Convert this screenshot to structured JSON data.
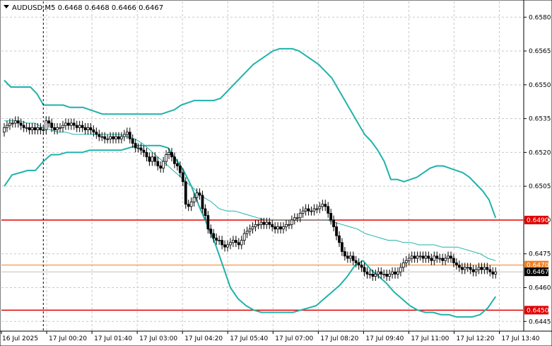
{
  "window": {
    "symbol_line": "AUDUSD,M5  0.6468 0.6468 0.6466 0.6467",
    "collapse_icon": "triangle-down-icon"
  },
  "colors": {
    "background": "#ffffff",
    "candle_bull": "#ffffff",
    "candle_bear": "#000000",
    "candle_outline": "#000000",
    "bollinger_band": "#20b2aa",
    "bollinger_mid": "#20b2aa",
    "grid": "#c8c8c8",
    "level_red": "#e00000",
    "level_orange": "#f08020",
    "bid_line": "#c0c0c0",
    "session_separator": "#000000"
  },
  "chart_data": {
    "type": "candlestick",
    "symbol": "AUDUSD",
    "timeframe": "M5",
    "ohlc": {
      "open": 0.6468,
      "high": 0.6468,
      "low": 0.6466,
      "close": 0.6467
    },
    "ylim": [
      0.6441,
      0.6587
    ],
    "y_ticks": [
      "0.6580",
      "0.6565",
      "0.6550",
      "0.6535",
      "0.6520",
      "0.6505",
      "0.6490",
      "0.6475",
      "0.6460",
      "0.6445"
    ],
    "x_ticks": [
      "16 Jul 2025",
      "17 Jul 00:20",
      "17 Jul 01:40",
      "17 Jul 03:00",
      "17 Jul 04:20",
      "17 Jul 05:40",
      "17 Jul 07:00",
      "17 Jul 08:20",
      "17 Jul 09:40",
      "17 Jul 11:00",
      "17 Jul 12:20",
      "17 Jul 13:40"
    ],
    "session_separator_index": 14,
    "horizontal_levels": [
      {
        "price": 0.649,
        "label": "0.6490",
        "color": "red"
      },
      {
        "price": 0.647,
        "label": "0.6470",
        "color": "orange"
      },
      {
        "price": 0.645,
        "label": "0.6450",
        "color": "red"
      }
    ],
    "current_price": {
      "price": 0.6467,
      "label": "0.6467"
    },
    "closes": [
      0.6531,
      0.6532,
      0.6533,
      0.6533,
      0.6534,
      0.6533,
      0.6532,
      0.6531,
      0.6531,
      0.653,
      0.6531,
      0.653,
      0.6531,
      0.653,
      0.653,
      0.6534,
      0.6533,
      0.6531,
      0.653,
      0.6531,
      0.6531,
      0.6532,
      0.6533,
      0.6532,
      0.6533,
      0.6532,
      0.6531,
      0.6532,
      0.6531,
      0.653,
      0.6531,
      0.653,
      0.6529,
      0.6528,
      0.6527,
      0.6527,
      0.6526,
      0.6526,
      0.6527,
      0.6526,
      0.6527,
      0.6526,
      0.6527,
      0.6528,
      0.6529,
      0.6526,
      0.6524,
      0.6522,
      0.6522,
      0.6521,
      0.652,
      0.6518,
      0.6516,
      0.6518,
      0.6516,
      0.6514,
      0.6513,
      0.6516,
      0.6519,
      0.652,
      0.6518,
      0.6515,
      0.6514,
      0.6511,
      0.6507,
      0.6497,
      0.6496,
      0.6498,
      0.65,
      0.6502,
      0.6501,
      0.6495,
      0.6492,
      0.6486,
      0.6484,
      0.6482,
      0.6481,
      0.6481,
      0.6479,
      0.6478,
      0.6479,
      0.648,
      0.6481,
      0.648,
      0.6479,
      0.6481,
      0.6484,
      0.6485,
      0.6486,
      0.6487,
      0.6488,
      0.6488,
      0.6489,
      0.6488,
      0.6489,
      0.6488,
      0.6487,
      0.6486,
      0.6487,
      0.6486,
      0.6487,
      0.6488,
      0.6488,
      0.649,
      0.6491,
      0.6491,
      0.6493,
      0.6494,
      0.6495,
      0.6494,
      0.6494,
      0.6495,
      0.6495,
      0.6496,
      0.6497,
      0.6496,
      0.6493,
      0.649,
      0.6487,
      0.6483,
      0.648,
      0.6476,
      0.6474,
      0.6473,
      0.6474,
      0.6472,
      0.6471,
      0.647,
      0.6469,
      0.6467,
      0.6466,
      0.6466,
      0.6465,
      0.6466,
      0.6467,
      0.6466,
      0.6466,
      0.6465,
      0.6466,
      0.6467,
      0.6466,
      0.6467,
      0.6469,
      0.6471,
      0.6472,
      0.6473,
      0.6474,
      0.6473,
      0.6474,
      0.6474,
      0.6473,
      0.6474,
      0.6473,
      0.6472,
      0.6474,
      0.6473,
      0.6473,
      0.6472,
      0.6473,
      0.6474,
      0.6473,
      0.6471,
      0.647,
      0.6469,
      0.6468,
      0.6469,
      0.6469,
      0.6468,
      0.6467,
      0.6468,
      0.6469,
      0.6468,
      0.6469,
      0.6468,
      0.6467,
      0.6466,
      0.6467
    ],
    "upper_band": [
      0.6552,
      0.6549,
      0.6549,
      0.6549,
      0.6549,
      0.6546,
      0.6541,
      0.6541,
      0.6541,
      0.6541,
      0.654,
      0.654,
      0.654,
      0.6539,
      0.6538,
      0.6537,
      0.6537,
      0.6537,
      0.6537,
      0.6537,
      0.6537,
      0.6537,
      0.6537,
      0.6537,
      0.6537,
      0.6538,
      0.6539,
      0.6541,
      0.6542,
      0.6543,
      0.6543,
      0.6543,
      0.6543,
      0.6544,
      0.6547,
      0.655,
      0.6553,
      0.6556,
      0.6559,
      0.6561,
      0.6563,
      0.6565,
      0.6566,
      0.6566,
      0.6566,
      0.6565,
      0.6563,
      0.6561,
      0.6559,
      0.6556,
      0.6553,
      0.6548,
      0.6543,
      0.6538,
      0.6533,
      0.6528,
      0.6525,
      0.6521,
      0.6516,
      0.6508,
      0.6508,
      0.6507,
      0.6508,
      0.6509,
      0.6511,
      0.6513,
      0.6514,
      0.6514,
      0.6513,
      0.6512,
      0.6511,
      0.6509,
      0.6506,
      0.6503,
      0.6499,
      0.6491
    ],
    "mid_band": [
      0.6534,
      0.6534,
      0.6534,
      0.6533,
      0.6533,
      0.6531,
      0.653,
      0.6529,
      0.6529,
      0.6528,
      0.6528,
      0.6528,
      0.6528,
      0.6528,
      0.6528,
      0.6528,
      0.6527,
      0.6526,
      0.6524,
      0.6521,
      0.6518,
      0.6515,
      0.6512,
      0.6509,
      0.6506,
      0.6503,
      0.65,
      0.6498,
      0.6495,
      0.6494,
      0.6494,
      0.6493,
      0.6492,
      0.6491,
      0.649,
      0.649,
      0.649,
      0.649,
      0.649,
      0.649,
      0.649,
      0.649,
      0.649,
      0.6489,
      0.6488,
      0.6487,
      0.6486,
      0.6484,
      0.6483,
      0.6482,
      0.6481,
      0.6481,
      0.648,
      0.648,
      0.6479,
      0.6479,
      0.6479,
      0.6478,
      0.6478,
      0.6478,
      0.6477,
      0.6476,
      0.6475,
      0.6473,
      0.6472
    ],
    "lower_band": [
      0.6505,
      0.651,
      0.6511,
      0.6512,
      0.6512,
      0.6516,
      0.6519,
      0.6519,
      0.652,
      0.652,
      0.652,
      0.6521,
      0.6521,
      0.6521,
      0.6521,
      0.6521,
      0.6522,
      0.6523,
      0.6523,
      0.6523,
      0.6523,
      0.6522,
      0.6517,
      0.6512,
      0.6505,
      0.6496,
      0.6488,
      0.648,
      0.647,
      0.646,
      0.6455,
      0.6452,
      0.645,
      0.6449,
      0.6449,
      0.6449,
      0.6449,
      0.6449,
      0.645,
      0.6451,
      0.6452,
      0.6455,
      0.6458,
      0.6461,
      0.6465,
      0.647,
      0.6472,
      0.6468,
      0.6465,
      0.6462,
      0.6458,
      0.6455,
      0.6452,
      0.645,
      0.6449,
      0.6449,
      0.6448,
      0.6448,
      0.6447,
      0.6447,
      0.6447,
      0.6448,
      0.6451,
      0.6456
    ]
  }
}
